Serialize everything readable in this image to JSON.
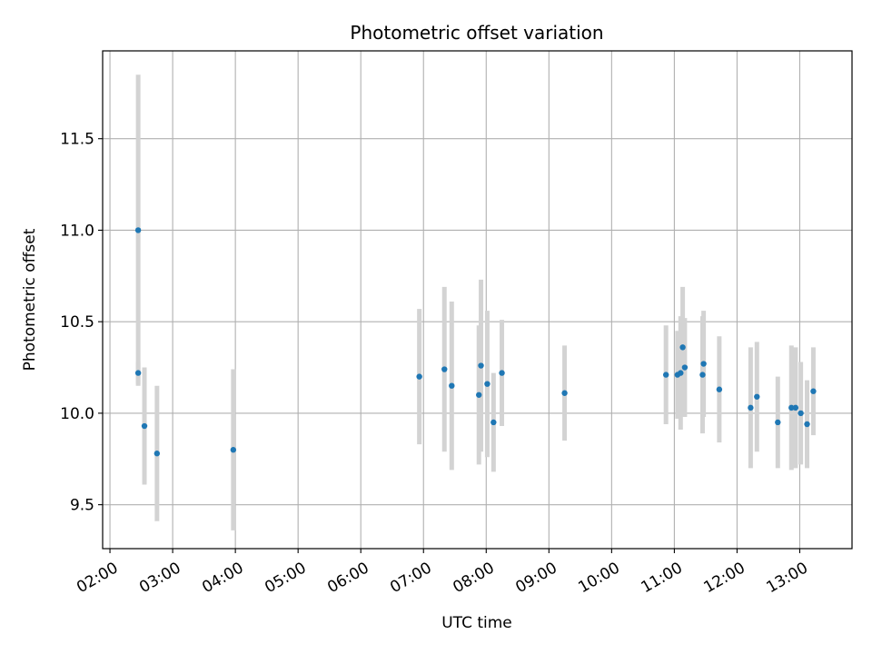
{
  "chart_data": {
    "type": "scatter",
    "title": "Photometric offset variation",
    "xlabel": "UTC time",
    "ylabel": "Photometric offset",
    "x_tick_labels": [
      "02:00",
      "03:00",
      "04:00",
      "05:00",
      "06:00",
      "07:00",
      "08:00",
      "09:00",
      "10:00",
      "11:00",
      "12:00",
      "13:00"
    ],
    "x_tick_hours": [
      2,
      3,
      4,
      5,
      6,
      7,
      8,
      9,
      10,
      11,
      12,
      13
    ],
    "y_ticks": [
      9.5,
      10.0,
      10.5,
      11.0,
      11.5
    ],
    "y_tick_labels": [
      "9.5",
      "10.0",
      "10.5",
      "11.0",
      "11.5"
    ],
    "xlim": [
      "01:53",
      "13:50"
    ],
    "ylim": [
      9.26,
      11.98
    ],
    "grid": true,
    "marker_color": "#1f77b4",
    "errorbar_color": "#d3d3d3",
    "points": [
      {
        "t": "02:27",
        "y": 11.0,
        "err": 0.85
      },
      {
        "t": "02:27",
        "y": 10.22,
        "err": 0.06
      },
      {
        "t": "02:33",
        "y": 9.93,
        "err": 0.32
      },
      {
        "t": "02:45",
        "y": 9.78,
        "err": 0.37
      },
      {
        "t": "03:58",
        "y": 9.8,
        "err": 0.44
      },
      {
        "t": "06:56",
        "y": 10.2,
        "err": 0.37
      },
      {
        "t": "07:20",
        "y": 10.24,
        "err": 0.45
      },
      {
        "t": "07:27",
        "y": 10.15,
        "err": 0.46
      },
      {
        "t": "07:53",
        "y": 10.1,
        "err": 0.38
      },
      {
        "t": "07:55",
        "y": 10.26,
        "err": 0.47
      },
      {
        "t": "08:01",
        "y": 10.16,
        "err": 0.4
      },
      {
        "t": "08:07",
        "y": 9.95,
        "err": 0.27
      },
      {
        "t": "08:15",
        "y": 10.22,
        "err": 0.29
      },
      {
        "t": "09:15",
        "y": 10.11,
        "err": 0.26
      },
      {
        "t": "10:52",
        "y": 10.21,
        "err": 0.27
      },
      {
        "t": "11:03",
        "y": 10.21,
        "err": 0.24
      },
      {
        "t": "11:06",
        "y": 10.22,
        "err": 0.31
      },
      {
        "t": "11:08",
        "y": 10.36,
        "err": 0.33
      },
      {
        "t": "11:10",
        "y": 10.25,
        "err": 0.27
      },
      {
        "t": "11:27",
        "y": 10.21,
        "err": 0.32
      },
      {
        "t": "11:28",
        "y": 10.27,
        "err": 0.29
      },
      {
        "t": "11:43",
        "y": 10.13,
        "err": 0.29
      },
      {
        "t": "12:13",
        "y": 10.03,
        "err": 0.33
      },
      {
        "t": "12:19",
        "y": 10.09,
        "err": 0.3
      },
      {
        "t": "12:39",
        "y": 9.95,
        "err": 0.25
      },
      {
        "t": "12:52",
        "y": 10.03,
        "err": 0.34
      },
      {
        "t": "12:56",
        "y": 10.03,
        "err": 0.33
      },
      {
        "t": "13:01",
        "y": 10.0,
        "err": 0.28
      },
      {
        "t": "13:07",
        "y": 9.94,
        "err": 0.24
      },
      {
        "t": "13:13",
        "y": 10.12,
        "err": 0.24
      }
    ]
  }
}
